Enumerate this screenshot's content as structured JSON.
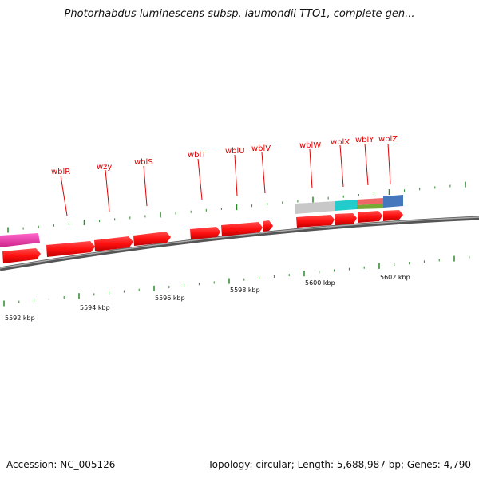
{
  "title": "Photorhabdus luminescens subsp. laumondii TTO1, complete gen...",
  "footer": {
    "accession": "Accession: NC_005126",
    "summary": "Topology: circular; Length: 5,688,987 bp; Genes: 4,790"
  },
  "gene_labels": [
    "wblR",
    "wzy",
    "wblS",
    "wblT",
    "wblU",
    "wblV",
    "wblW",
    "wblX",
    "wblY",
    "wblZ"
  ],
  "scale_labels": [
    "5592 kbp",
    "5594 kbp",
    "5596 kbp",
    "5598 kbp",
    "5600 kbp",
    "5602 kbp"
  ],
  "colors": {
    "gene_label": "#e00000",
    "gene_arrow": "#ff1010",
    "backbone": "#777777",
    "tick": "#2a8a2a",
    "pink_feature": "#ee3399",
    "grey_feature": "#c8c8c8",
    "cyan_feature": "#22cccc",
    "salmon_feature": "#ee6666",
    "olive_feature": "#77aa33",
    "blue_feature": "#4477bb"
  }
}
